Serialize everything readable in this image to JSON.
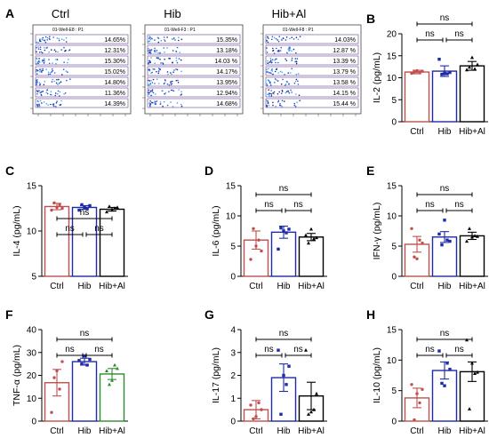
{
  "figure": {
    "panel_A": {
      "letter": "A",
      "groups": [
        {
          "title": "Ctrl",
          "plot_label": "01-Well-E8 : P1",
          "percents": [
            "14.65%",
            "12.31%",
            "15.30%",
            "15.02%",
            "14.80%",
            "11.36%",
            "14.39%"
          ]
        },
        {
          "title": "Hib",
          "plot_label": "01-Well-F3 : P1",
          "percents": [
            "15.35%",
            "13.18%",
            "14.03 %",
            "14.17%",
            "13.95%",
            "12.94%",
            "14.68%"
          ]
        },
        {
          "title": "Hib+Al",
          "plot_label": "01-Well-F8 : P1",
          "percents": [
            "14.03%",
            "12.87 %",
            "13.39 %",
            "13.79 %",
            "13.58 %",
            "14.15 %",
            "15.44 %"
          ]
        }
      ]
    },
    "ns_label": "ns"
  },
  "chart_data": [
    {
      "panel": "B",
      "type": "bar",
      "categories": [
        "Ctrl",
        "Hib",
        "Hib+Al"
      ],
      "ylabel": "IL-2 (pg/mL)",
      "ylim": [
        0,
        20
      ],
      "yticks": [
        0,
        5,
        10,
        15,
        20
      ],
      "values": [
        11.3,
        11.5,
        12.7
      ],
      "errors": [
        0.4,
        1.2,
        1.0
      ],
      "points": [
        [
          11,
          11.3,
          11.6,
          11.2,
          11.5
        ],
        [
          14.2,
          10.8,
          11,
          10.9,
          11.2
        ],
        [
          11.8,
          12.4,
          14.6,
          12,
          13
        ]
      ],
      "colors": [
        "#c0504d",
        "#1f2aa6",
        "#000000"
      ],
      "point_colors": [
        "#c0504d",
        "#1f2aa6",
        "#000000"
      ],
      "significance": [
        {
          "from": 0,
          "to": 2,
          "label": "ns"
        },
        {
          "from": 0,
          "to": 1,
          "label": "ns"
        },
        {
          "from": 1,
          "to": 2,
          "label": "ns"
        }
      ]
    },
    {
      "panel": "C",
      "type": "bar",
      "categories": [
        "Ctrl",
        "Hib",
        "Hib+Al"
      ],
      "ylabel": "IL-4 (pg/mL)",
      "ylim": [
        5,
        15
      ],
      "yticks": [
        5,
        10,
        15
      ],
      "values": [
        12.7,
        12.6,
        12.4
      ],
      "errors": [
        0.35,
        0.2,
        0.2
      ],
      "points": [
        [
          12.3,
          13.1,
          12.6,
          12.9,
          12.5
        ],
        [
          12.3,
          12.9,
          12.6,
          12.5,
          12.8
        ],
        [
          12.1,
          12.7,
          12.3,
          12.5,
          12.6
        ]
      ],
      "colors": [
        "#c0504d",
        "#1f2aa6",
        "#000000"
      ],
      "point_colors": [
        "#c0504d",
        "#1f2aa6",
        "#000000"
      ],
      "significance": [
        {
          "from": 0,
          "to": 2,
          "label": "ns"
        },
        {
          "from": 0,
          "to": 1,
          "label": "ns"
        },
        {
          "from": 1,
          "to": 2,
          "label": "ns"
        }
      ]
    },
    {
      "panel": "D",
      "type": "bar",
      "categories": [
        "Ctrl",
        "Hib",
        "Hib+Al"
      ],
      "ylabel": "IL-6 (pg/mL)",
      "ylim": [
        0,
        15
      ],
      "yticks": [
        0,
        5,
        10,
        15
      ],
      "values": [
        6.0,
        7.3,
        6.5
      ],
      "errors": [
        1.5,
        1.0,
        0.6
      ],
      "points": [
        [
          2.8,
          7.9,
          5.0,
          6.0,
          4.2
        ],
        [
          4.5,
          8.0,
          7.5,
          7.2,
          7.8
        ],
        [
          6.8,
          5.5,
          7.8,
          6.2,
          6.4
        ]
      ],
      "colors": [
        "#c0504d",
        "#1f2aa6",
        "#000000"
      ],
      "point_colors": [
        "#c0504d",
        "#1f2aa6",
        "#000000"
      ],
      "significance": [
        {
          "from": 0,
          "to": 2,
          "label": "ns"
        },
        {
          "from": 0,
          "to": 1,
          "label": "ns"
        },
        {
          "from": 1,
          "to": 2,
          "label": "ns"
        }
      ]
    },
    {
      "panel": "E",
      "type": "bar",
      "categories": [
        "Ctrl",
        "Hib",
        "Hib+Al"
      ],
      "ylabel": "IFN-γ (pg/mL)",
      "ylim": [
        0,
        15
      ],
      "yticks": [
        0,
        5,
        10,
        15
      ],
      "values": [
        5.3,
        6.5,
        6.7
      ],
      "errors": [
        1.3,
        0.9,
        0.6
      ],
      "points": [
        [
          7.9,
          3.2,
          2.9,
          6.0,
          5.5
        ],
        [
          7.0,
          5.2,
          9.3,
          6.0,
          5.8
        ],
        [
          5.8,
          7.9,
          6.5,
          6.7,
          6.6
        ]
      ],
      "colors": [
        "#c0504d",
        "#1f2aa6",
        "#000000"
      ],
      "point_colors": [
        "#c0504d",
        "#1f2aa6",
        "#000000"
      ],
      "significance": [
        {
          "from": 0,
          "to": 2,
          "label": "ns"
        },
        {
          "from": 0,
          "to": 1,
          "label": "ns"
        },
        {
          "from": 1,
          "to": 2,
          "label": "ns"
        }
      ]
    },
    {
      "panel": "F",
      "type": "bar",
      "categories": [
        "Ctrl",
        "Hib",
        "Hib+Al"
      ],
      "ylabel": "TNF-α (pg/mL)",
      "ylim": [
        0,
        40
      ],
      "yticks": [
        0,
        10,
        20,
        30,
        40
      ],
      "values": [
        16.8,
        26.0,
        20.6
      ],
      "errors": [
        5.8,
        1.5,
        2.4
      ],
      "points": [
        [
          3.8,
          19.0,
          22.0,
          14.0,
          26.0
        ],
        [
          26.5,
          25.0,
          28.5,
          24.5,
          27.0
        ],
        [
          22.0,
          16.0,
          17.8,
          24.5,
          23.0
        ]
      ],
      "colors": [
        "#c0504d",
        "#1f2aa6",
        "#2e8b2e"
      ],
      "point_colors": [
        "#c0504d",
        "#1f2aa6",
        "#2e8b2e"
      ],
      "significance": [
        {
          "from": 0,
          "to": 2,
          "label": "ns"
        },
        {
          "from": 0,
          "to": 1,
          "label": "ns"
        },
        {
          "from": 1,
          "to": 2,
          "label": "ns"
        }
      ]
    },
    {
      "panel": "G",
      "type": "bar",
      "categories": [
        "Ctrl",
        "Hib",
        "Hib+Al"
      ],
      "ylabel": "IL-17 (pg/mL)",
      "ylim": [
        0,
        4
      ],
      "yticks": [
        0,
        1,
        2,
        3,
        4
      ],
      "values": [
        0.5,
        1.9,
        1.1
      ],
      "errors": [
        0.4,
        0.6,
        0.6
      ],
      "points": [
        [
          0.7,
          0.1,
          0.2,
          0.8,
          0.5
        ],
        [
          3.1,
          0.3,
          2.0,
          1.6,
          2.4
        ],
        [
          3.1,
          0.3,
          0.4,
          0.5,
          1.2
        ]
      ],
      "colors": [
        "#c0504d",
        "#1f2aa6",
        "#000000"
      ],
      "point_colors": [
        "#c0504d",
        "#1f2aa6",
        "#000000"
      ],
      "significance": [
        {
          "from": 0,
          "to": 2,
          "label": "ns"
        },
        {
          "from": 0,
          "to": 1,
          "label": "ns"
        },
        {
          "from": 1,
          "to": 2,
          "label": "ns"
        }
      ]
    },
    {
      "panel": "H",
      "type": "bar",
      "categories": [
        "Ctrl",
        "Hib",
        "Hib+Al"
      ],
      "ylabel": "IL-10 (pg/mL)",
      "ylim": [
        0,
        15
      ],
      "yticks": [
        0,
        5,
        10,
        15
      ],
      "values": [
        3.8,
        8.3,
        8.1
      ],
      "errors": [
        1.6,
        1.4,
        1.6
      ],
      "points": [
        [
          6.0,
          0.2,
          4.5,
          3.0,
          5.2
        ],
        [
          11.5,
          6.2,
          5.8,
          9.5,
          8.5
        ],
        [
          13.3,
          2.0,
          9.5,
          7.8,
          8.0
        ]
      ],
      "colors": [
        "#c0504d",
        "#1f2aa6",
        "#000000"
      ],
      "point_colors": [
        "#c0504d",
        "#1f2aa6",
        "#000000"
      ],
      "significance": [
        {
          "from": 0,
          "to": 2,
          "label": "ns"
        },
        {
          "from": 0,
          "to": 1,
          "label": "ns"
        },
        {
          "from": 1,
          "to": 2,
          "label": "ns"
        }
      ]
    }
  ]
}
